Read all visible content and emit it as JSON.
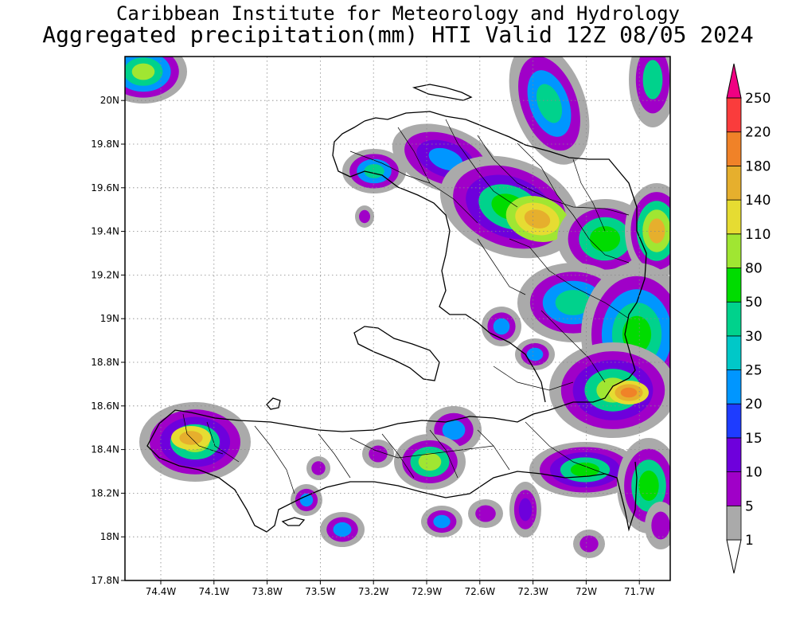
{
  "title_line1": "Caribbean Institute for Meteorology and Hydrology",
  "title_line2": "Aggregated precipitation(mm) HTI Valid 12Z 08/05 2024",
  "map": {
    "region": "Haiti",
    "lon_ticks": [
      "74.4W",
      "74.1W",
      "73.8W",
      "73.5W",
      "73.2W",
      "72.9W",
      "72.6W",
      "72.3W",
      "72W",
      "71.7W"
    ],
    "lat_ticks": [
      "17.8N",
      "18N",
      "18.2N",
      "18.4N",
      "18.6N",
      "18.8N",
      "19N",
      "19.2N",
      "19.4N",
      "19.6N",
      "19.8N",
      "20N"
    ],
    "grid": "dotted"
  },
  "colorbar": {
    "labels": [
      "1",
      "5",
      "10",
      "15",
      "20",
      "25",
      "30",
      "50",
      "80",
      "110",
      "140",
      "180",
      "220",
      "250"
    ],
    "colors": [
      "#aaaaaa",
      "#a000c8",
      "#6e00dc",
      "#1e3cff",
      "#0096ff",
      "#00c8c8",
      "#00d28c",
      "#00dc00",
      "#a0e632",
      "#e6dc32",
      "#e6af2d",
      "#f08228",
      "#fa3c3c",
      "#f00082"
    ]
  },
  "precip_colors": {
    "c1": "#aaaaaa",
    "c5": "#a000c8",
    "c10": "#6e00dc",
    "c20": "#0096ff",
    "c30": "#00d28c",
    "c50": "#00dc00",
    "c80": "#a0e632",
    "c110": "#e6dc32",
    "c140": "#e6af2d",
    "c180": "#f08228"
  }
}
